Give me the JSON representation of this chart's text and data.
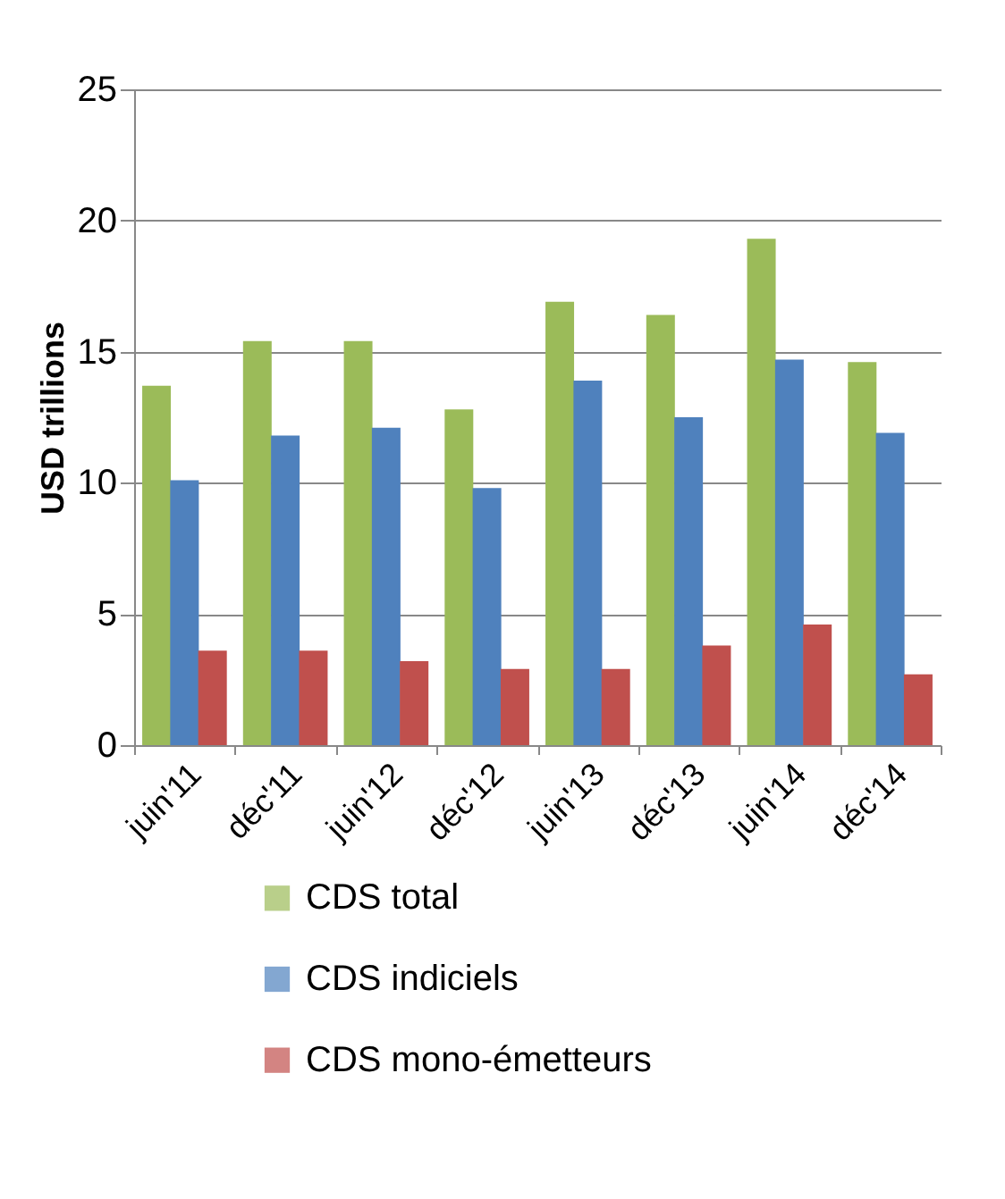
{
  "chart_data": {
    "type": "bar",
    "ylabel": "USD trillions",
    "categories": [
      "juin'11",
      "déc'11",
      "juin'12",
      "déc'12",
      "juin'13",
      "déc'13",
      "juin'14",
      "déc'14"
    ],
    "series": [
      {
        "name": "CDS total",
        "color": "#9bbb59",
        "values": [
          13.7,
          15.4,
          15.4,
          12.8,
          16.9,
          16.4,
          19.3,
          14.6
        ]
      },
      {
        "name": "CDS indiciels",
        "color": "#4f81bd",
        "values": [
          10.1,
          11.8,
          12.1,
          9.8,
          13.9,
          12.5,
          14.7,
          11.9
        ]
      },
      {
        "name": "CDS mono-émetteurs",
        "color": "#c0504d",
        "values": [
          3.6,
          3.6,
          3.2,
          2.9,
          2.9,
          3.8,
          4.6,
          2.7
        ]
      }
    ],
    "ylim": [
      0,
      25
    ],
    "yticks": [
      0,
      5,
      10,
      15,
      20,
      25
    ],
    "grid": "y",
    "legend": "bottom"
  }
}
